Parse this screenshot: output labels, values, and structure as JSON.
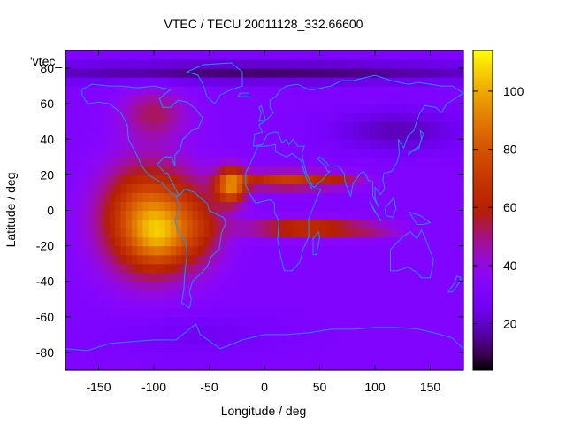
{
  "chart_data": {
    "type": "heatmap",
    "title": "VTEC / TECU 20011128_332.66600",
    "xlabel": "Longitude / deg",
    "ylabel": "Latitude / deg",
    "legend_entry": "'vtec_",
    "xlim": [
      -180,
      180
    ],
    "ylim": [
      -90,
      90
    ],
    "xticks": [
      -150,
      -100,
      -50,
      0,
      50,
      100,
      150
    ],
    "yticks": [
      -80,
      -60,
      -40,
      -20,
      0,
      20,
      40,
      60,
      80
    ],
    "colorbar": {
      "min": 4,
      "max": 114,
      "ticks": [
        20,
        40,
        60,
        80,
        100
      ],
      "palette": "black-purple-red-orange-yellow"
    },
    "vtec_model": {
      "background": 32,
      "blobs": [
        {
          "lon": -105,
          "lat": -5,
          "slon": 42,
          "slat": 30,
          "amp": 58
        },
        {
          "lon": -95,
          "lat": -15,
          "slon": 22,
          "slat": 16,
          "amp": 20
        },
        {
          "lon": -30,
          "lat": 14,
          "slon": 14,
          "slat": 10,
          "amp": 55
        },
        {
          "lon": -60,
          "lat": -10,
          "slon": 26,
          "slat": 22,
          "amp": 20
        },
        {
          "lon": 20,
          "lat": 17,
          "slon": 42,
          "slat": 5,
          "amp": 40
        },
        {
          "lon": 70,
          "lat": 17,
          "slon": 22,
          "slat": 4,
          "amp": 16
        },
        {
          "lon": 40,
          "lat": -10,
          "slon": 55,
          "slat": 5,
          "amp": 40
        },
        {
          "lon": 100,
          "lat": -12,
          "slon": 26,
          "slat": 4,
          "amp": 8
        },
        {
          "lon": -100,
          "lat": 55,
          "slon": 30,
          "slat": 14,
          "amp": 20
        },
        {
          "lon": 0,
          "lat": 78,
          "slon": 260,
          "slat": 6,
          "amp": -20
        },
        {
          "lon": 120,
          "lat": 45,
          "slon": 60,
          "slat": 12,
          "amp": -14
        },
        {
          "lon": -60,
          "lat": -70,
          "slon": 80,
          "slat": 12,
          "amp": -6
        }
      ]
    },
    "coastlines": [
      {
        "name": "north-america",
        "points": [
          [
            -165,
            65
          ],
          [
            -160,
            60
          ],
          [
            -150,
            61
          ],
          [
            -140,
            60
          ],
          [
            -130,
            55
          ],
          [
            -124,
            48
          ],
          [
            -123,
            40
          ],
          [
            -117,
            33
          ],
          [
            -110,
            24
          ],
          [
            -105,
            20
          ],
          [
            -97,
            17
          ],
          [
            -92,
            15
          ],
          [
            -85,
            10
          ],
          [
            -80,
            8
          ],
          [
            -78,
            9
          ],
          [
            -83,
            15
          ],
          [
            -88,
            21
          ],
          [
            -90,
            21
          ],
          [
            -97,
            26
          ],
          [
            -90,
            30
          ],
          [
            -84,
            30
          ],
          [
            -81,
            25
          ],
          [
            -81,
            31
          ],
          [
            -76,
            35
          ],
          [
            -74,
            40
          ],
          [
            -70,
            42
          ],
          [
            -66,
            45
          ],
          [
            -60,
            46
          ],
          [
            -56,
            52
          ],
          [
            -62,
            57
          ],
          [
            -70,
            61
          ],
          [
            -78,
            62
          ],
          [
            -85,
            58
          ],
          [
            -92,
            58
          ],
          [
            -95,
            63
          ],
          [
            -85,
            68
          ],
          [
            -100,
            70
          ],
          [
            -115,
            69
          ],
          [
            -130,
            70
          ],
          [
            -140,
            70
          ],
          [
            -156,
            71
          ],
          [
            -165,
            68
          ],
          [
            -165,
            65
          ]
        ]
      },
      {
        "name": "greenland",
        "points": [
          [
            -45,
            60
          ],
          [
            -52,
            64
          ],
          [
            -55,
            70
          ],
          [
            -60,
            76
          ],
          [
            -70,
            78
          ],
          [
            -55,
            82
          ],
          [
            -30,
            83
          ],
          [
            -20,
            78
          ],
          [
            -20,
            70
          ],
          [
            -30,
            68
          ],
          [
            -40,
            65
          ],
          [
            -45,
            60
          ]
        ]
      },
      {
        "name": "south-america",
        "points": [
          [
            -80,
            8
          ],
          [
            -77,
            2
          ],
          [
            -80,
            -3
          ],
          [
            -81,
            -6
          ],
          [
            -77,
            -13
          ],
          [
            -71,
            -18
          ],
          [
            -70,
            -25
          ],
          [
            -72,
            -35
          ],
          [
            -73,
            -45
          ],
          [
            -75,
            -52
          ],
          [
            -68,
            -55
          ],
          [
            -66,
            -50
          ],
          [
            -68,
            -46
          ],
          [
            -65,
            -40
          ],
          [
            -58,
            -36
          ],
          [
            -52,
            -32
          ],
          [
            -48,
            -26
          ],
          [
            -41,
            -22
          ],
          [
            -39,
            -13
          ],
          [
            -35,
            -7
          ],
          [
            -37,
            -4
          ],
          [
            -44,
            -2
          ],
          [
            -50,
            0
          ],
          [
            -52,
            4
          ],
          [
            -58,
            7
          ],
          [
            -63,
            10
          ],
          [
            -72,
            12
          ],
          [
            -76,
            9
          ],
          [
            -80,
            8
          ]
        ]
      },
      {
        "name": "africa",
        "points": [
          [
            -6,
            36
          ],
          [
            -10,
            30
          ],
          [
            -17,
            21
          ],
          [
            -17,
            14
          ],
          [
            -12,
            8
          ],
          [
            -8,
            4
          ],
          [
            -2,
            5
          ],
          [
            5,
            6
          ],
          [
            9,
            4
          ],
          [
            9,
            -1
          ],
          [
            13,
            -6
          ],
          [
            12,
            -17
          ],
          [
            15,
            -27
          ],
          [
            18,
            -34
          ],
          [
            25,
            -34
          ],
          [
            32,
            -29
          ],
          [
            35,
            -22
          ],
          [
            40,
            -15
          ],
          [
            40,
            -5
          ],
          [
            43,
            0
          ],
          [
            51,
            12
          ],
          [
            43,
            12
          ],
          [
            38,
            18
          ],
          [
            33,
            28
          ],
          [
            25,
            32
          ],
          [
            20,
            30
          ],
          [
            10,
            33
          ],
          [
            10,
            37
          ],
          [
            0,
            36
          ],
          [
            -6,
            36
          ]
        ]
      },
      {
        "name": "eurasia",
        "points": [
          [
            -10,
            36
          ],
          [
            -9,
            43
          ],
          [
            -2,
            44
          ],
          [
            -5,
            48
          ],
          [
            2,
            51
          ],
          [
            5,
            53
          ],
          [
            8,
            55
          ],
          [
            5,
            58
          ],
          [
            5,
            62
          ],
          [
            10,
            64
          ],
          [
            15,
            68
          ],
          [
            20,
            70
          ],
          [
            30,
            71
          ],
          [
            40,
            68
          ],
          [
            45,
            68
          ],
          [
            60,
            70
          ],
          [
            70,
            73
          ],
          [
            80,
            73
          ],
          [
            100,
            76
          ],
          [
            115,
            73
          ],
          [
            130,
            71
          ],
          [
            140,
            72
          ],
          [
            150,
            71
          ],
          [
            160,
            70
          ],
          [
            170,
            70
          ],
          [
            180,
            66
          ],
          [
            175,
            64
          ],
          [
            165,
            60
          ],
          [
            160,
            55
          ],
          [
            155,
            58
          ],
          [
            145,
            59
          ],
          [
            140,
            54
          ],
          [
            135,
            45
          ],
          [
            130,
            42
          ],
          [
            127,
            37
          ],
          [
            126,
            35
          ],
          [
            121,
            40
          ],
          [
            122,
            32
          ],
          [
            120,
            27
          ],
          [
            115,
            22
          ],
          [
            108,
            21
          ],
          [
            107,
            17
          ],
          [
            109,
            12
          ],
          [
            105,
            9
          ],
          [
            100,
            13
          ],
          [
            100,
            7
          ],
          [
            103,
            2
          ],
          [
            98,
            8
          ],
          [
            98,
            16
          ],
          [
            94,
            17
          ],
          [
            90,
            22
          ],
          [
            87,
            21
          ],
          [
            80,
            15
          ],
          [
            78,
            8
          ],
          [
            73,
            16
          ],
          [
            72,
            21
          ],
          [
            67,
            25
          ],
          [
            58,
            25
          ],
          [
            56,
            27
          ],
          [
            50,
            30
          ],
          [
            48,
            29
          ],
          [
            55,
            25
          ],
          [
            57,
            22
          ],
          [
            59,
            22
          ],
          [
            52,
            17
          ],
          [
            45,
            13
          ],
          [
            43,
            14
          ],
          [
            38,
            21
          ],
          [
            35,
            28
          ],
          [
            34,
            32
          ],
          [
            36,
            36
          ],
          [
            30,
            36
          ],
          [
            26,
            40
          ],
          [
            22,
            37
          ],
          [
            20,
            40
          ],
          [
            16,
            38
          ],
          [
            12,
            44
          ],
          [
            8,
            44
          ],
          [
            3,
            43
          ],
          [
            -2,
            37
          ],
          [
            -10,
            36
          ]
        ]
      },
      {
        "name": "australia",
        "points": [
          [
            114,
            -22
          ],
          [
            114,
            -34
          ],
          [
            120,
            -34
          ],
          [
            130,
            -32
          ],
          [
            138,
            -35
          ],
          [
            142,
            -38
          ],
          [
            150,
            -38
          ],
          [
            153,
            -28
          ],
          [
            145,
            -15
          ],
          [
            142,
            -11
          ],
          [
            138,
            -16
          ],
          [
            132,
            -12
          ],
          [
            125,
            -15
          ],
          [
            114,
            -22
          ]
        ]
      },
      {
        "name": "antarctica",
        "points": [
          [
            -180,
            -78
          ],
          [
            -160,
            -79
          ],
          [
            -140,
            -75
          ],
          [
            -100,
            -73
          ],
          [
            -80,
            -73
          ],
          [
            -62,
            -64
          ],
          [
            -58,
            -70
          ],
          [
            -40,
            -78
          ],
          [
            -20,
            -73
          ],
          [
            0,
            -70
          ],
          [
            20,
            -70
          ],
          [
            40,
            -69
          ],
          [
            60,
            -67
          ],
          [
            80,
            -67
          ],
          [
            100,
            -66
          ],
          [
            120,
            -66
          ],
          [
            140,
            -67
          ],
          [
            160,
            -70
          ],
          [
            170,
            -72
          ],
          [
            180,
            -78
          ]
        ]
      },
      {
        "name": "uk",
        "points": [
          [
            -5,
            50
          ],
          [
            -3,
            55
          ],
          [
            -5,
            58
          ],
          [
            -3,
            59
          ],
          [
            0,
            53
          ],
          [
            1,
            51
          ],
          [
            -5,
            50
          ]
        ]
      },
      {
        "name": "japan",
        "points": [
          [
            130,
            31
          ],
          [
            135,
            34
          ],
          [
            140,
            36
          ],
          [
            142,
            40
          ],
          [
            141,
            45
          ],
          [
            144,
            43
          ],
          [
            141,
            38
          ],
          [
            140,
            35
          ],
          [
            131,
            33
          ],
          [
            130,
            31
          ]
        ]
      },
      {
        "name": "madagascar",
        "points": [
          [
            44,
            -25
          ],
          [
            47,
            -25
          ],
          [
            50,
            -15
          ],
          [
            49,
            -12
          ],
          [
            44,
            -16
          ],
          [
            44,
            -25
          ]
        ]
      },
      {
        "name": "new-guinea",
        "points": [
          [
            131,
            -1
          ],
          [
            141,
            -3
          ],
          [
            150,
            -7
          ],
          [
            144,
            -8
          ],
          [
            138,
            -8
          ],
          [
            131,
            -1
          ]
        ]
      },
      {
        "name": "borneo",
        "points": [
          [
            109,
            0
          ],
          [
            110,
            -3
          ],
          [
            116,
            -4
          ],
          [
            119,
            1
          ],
          [
            117,
            7
          ],
          [
            110,
            2
          ],
          [
            109,
            0
          ]
        ]
      },
      {
        "name": "sumatra",
        "points": [
          [
            95,
            5
          ],
          [
            100,
            -1
          ],
          [
            106,
            -6
          ],
          [
            104,
            -5
          ],
          [
            98,
            2
          ],
          [
            95,
            5
          ]
        ]
      },
      {
        "name": "new-zealand",
        "points": [
          [
            166,
            -46
          ],
          [
            172,
            -41
          ],
          [
            174,
            -37
          ],
          [
            178,
            -38
          ],
          [
            176,
            -41
          ],
          [
            170,
            -46
          ],
          [
            166,
            -46
          ]
        ]
      },
      {
        "name": "iceland",
        "points": [
          [
            -24,
            64
          ],
          [
            -22,
            66
          ],
          [
            -14,
            66
          ],
          [
            -14,
            64
          ],
          [
            -24,
            64
          ]
        ]
      }
    ]
  }
}
